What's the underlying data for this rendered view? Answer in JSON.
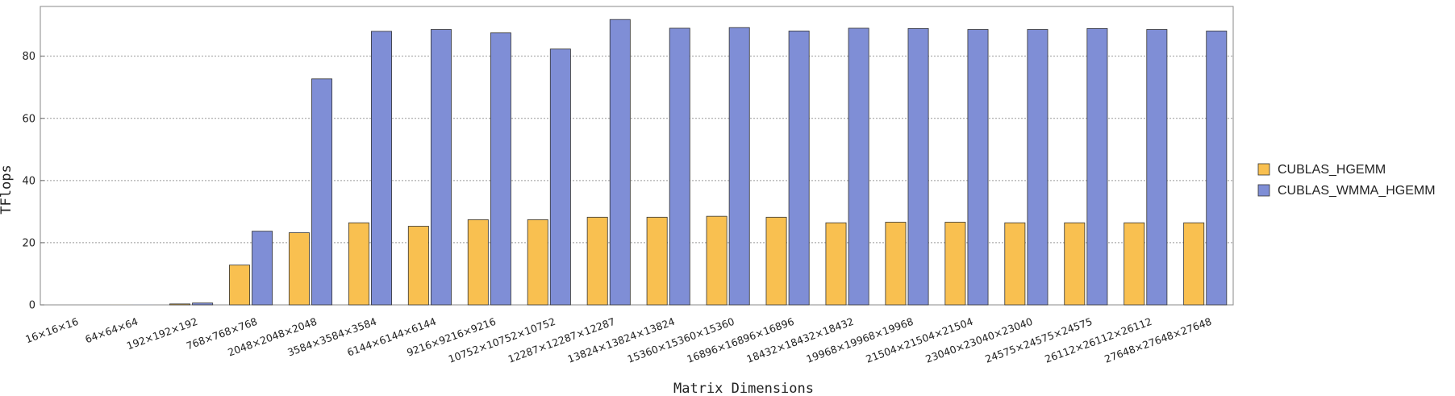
{
  "chart_data": {
    "type": "bar",
    "title": "",
    "xlabel": "Matrix Dimensions",
    "ylabel": "TFlops",
    "ylim": [
      0,
      96
    ],
    "yticks": [
      0,
      20,
      40,
      60,
      80
    ],
    "grid": true,
    "legend_position": "right",
    "categories": [
      "16×16×16",
      "64×64×64",
      "192×192×192",
      "768×768×768",
      "2048×2048×2048",
      "3584×3584×3584",
      "6144×6144×6144",
      "9216×9216×9216",
      "10752×10752×10752",
      "12287×12287×12287",
      "13824×13824×13824",
      "15360×15360×15360",
      "16896×16896×16896",
      "18432×18432×18432",
      "19968×19968×19968",
      "21504×21504×21504",
      "23040×23040×23040",
      "24575×24575×24575",
      "26112×26112×26112",
      "27648×27648×27648"
    ],
    "series": [
      {
        "name": "CUBLAS_HGEMM",
        "color": "#f9c050",
        "values": [
          0.0,
          0.01,
          0.3,
          12.8,
          23.2,
          26.4,
          25.3,
          27.4,
          27.4,
          28.2,
          28.2,
          28.5,
          28.2,
          26.4,
          26.6,
          26.6,
          26.4,
          26.4,
          26.4,
          26.4
        ]
      },
      {
        "name": "CUBLAS_WMMA_HGEMM",
        "color": "#7f8ed6",
        "values": [
          0.0,
          0.02,
          0.6,
          23.7,
          72.7,
          88.0,
          88.6,
          87.5,
          82.3,
          91.8,
          89.0,
          89.2,
          88.1,
          89.0,
          88.9,
          88.6,
          88.6,
          88.9,
          88.6,
          88.1
        ]
      }
    ]
  }
}
